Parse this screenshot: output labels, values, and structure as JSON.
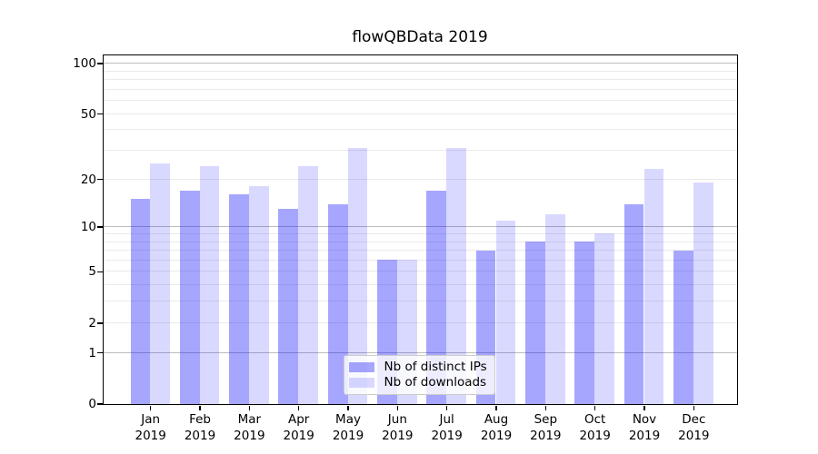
{
  "chart_data": {
    "type": "bar",
    "title": "flowQBData 2019",
    "categories": [
      "Jan 2019",
      "Feb 2019",
      "Mar 2019",
      "Apr 2019",
      "May 2019",
      "Jun 2019",
      "Jul 2019",
      "Aug 2019",
      "Sep 2019",
      "Oct 2019",
      "Nov 2019",
      "Dec 2019"
    ],
    "x_tick_months": [
      "Jan",
      "Feb",
      "Mar",
      "Apr",
      "May",
      "Jun",
      "Jul",
      "Aug",
      "Sep",
      "Oct",
      "Nov",
      "Dec"
    ],
    "x_tick_year": "2019",
    "series": [
      {
        "name": "Nb of distinct IPs",
        "color": "rgba(0,0,255,0.35)",
        "values": [
          15,
          17,
          16,
          13,
          14,
          6,
          17,
          7,
          8,
          8,
          14,
          7
        ]
      },
      {
        "name": "Nb of downloads",
        "color": "rgba(0,0,255,0.15)",
        "values": [
          25,
          24,
          18,
          24,
          31,
          6,
          31,
          11,
          12,
          9,
          23,
          19
        ]
      }
    ],
    "y_axis": {
      "scale": "log1p",
      "min": 0,
      "max": 112,
      "tick_labels": [
        0,
        1,
        2,
        5,
        10,
        20,
        50,
        100
      ],
      "major_gridlines": [
        1,
        10,
        100
      ],
      "minor_gridlines": [
        2,
        3,
        4,
        5,
        6,
        7,
        8,
        9,
        20,
        30,
        40,
        50,
        60,
        70,
        80,
        90
      ]
    },
    "legend": {
      "position": "lower center",
      "entries": [
        "Nb of distinct IPs",
        "Nb of downloads"
      ]
    },
    "grid": true
  },
  "colors": {
    "background": "#ffffff",
    "spine": "#000000",
    "major_grid": "#bdbdbd",
    "minor_grid": "#eaeaea",
    "bar_dark": "rgba(0,0,255,0.35)",
    "bar_light": "rgba(0,0,255,0.15)"
  }
}
